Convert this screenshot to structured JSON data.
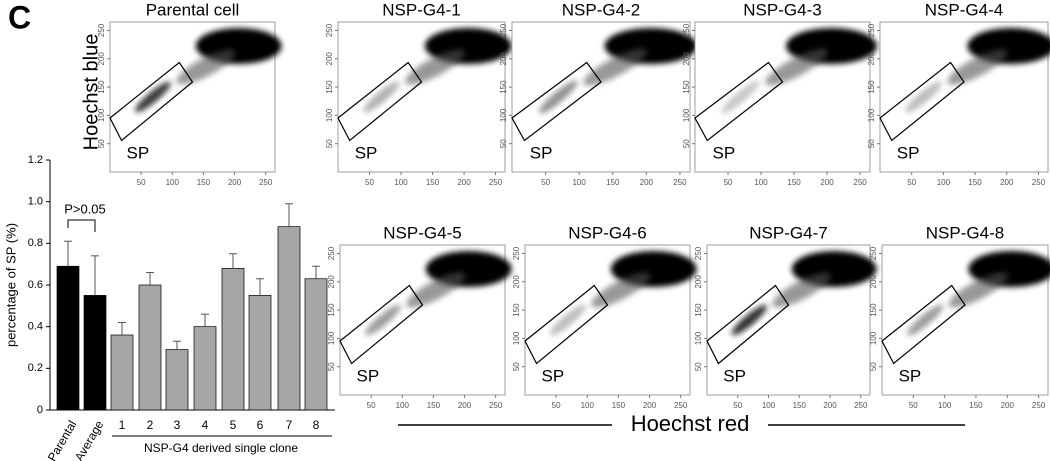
{
  "panel_label": "C",
  "chart_data": [
    {
      "type": "bar",
      "ylabel": "percentage of SP (%)",
      "categories": [
        "Parental",
        "Average",
        "1",
        "2",
        "3",
        "4",
        "5",
        "6",
        "7",
        "8"
      ],
      "values": [
        0.69,
        0.55,
        0.36,
        0.6,
        0.29,
        0.4,
        0.68,
        0.55,
        0.88,
        0.63
      ],
      "errors": [
        0.12,
        0.19,
        0.06,
        0.06,
        0.04,
        0.06,
        0.07,
        0.08,
        0.11,
        0.06
      ],
      "colors": [
        "#000000",
        "#000000",
        "#a6a6a6",
        "#a6a6a6",
        "#a6a6a6",
        "#a6a6a6",
        "#a6a6a6",
        "#a6a6a6",
        "#a6a6a6",
        "#a6a6a6"
      ],
      "ylim": [
        0,
        1.2
      ],
      "yticks": [
        0,
        0.2,
        0.4,
        0.6,
        0.8,
        {
          "value": 1,
          "label": "1.0"
        },
        1.2
      ],
      "annotation": "P>0.05",
      "group_label": "NSP-G4 derived single clone"
    },
    {
      "type": "scatter",
      "xlabel": "Hoechst red",
      "ylabel": "Hoechst blue",
      "xlim": [
        0,
        265
      ],
      "ylim": [
        0,
        265
      ],
      "xticks": [
        50,
        100,
        150,
        200,
        250
      ],
      "yticks": [
        50,
        100,
        150,
        200,
        250
      ],
      "panels": [
        {
          "title": "Parental cell",
          "gate_label": "SP"
        },
        {
          "title": "NSP-G4-1",
          "gate_label": "SP"
        },
        {
          "title": "NSP-G4-2",
          "gate_label": "SP"
        },
        {
          "title": "NSP-G4-3",
          "gate_label": "SP"
        },
        {
          "title": "NSP-G4-4",
          "gate_label": "SP"
        },
        {
          "title": "NSP-G4-5",
          "gate_label": "SP"
        },
        {
          "title": "NSP-G4-6",
          "gate_label": "SP"
        },
        {
          "title": "NSP-G4-7",
          "gate_label": "SP"
        },
        {
          "title": "NSP-G4-8",
          "gate_label": "SP"
        }
      ]
    }
  ]
}
